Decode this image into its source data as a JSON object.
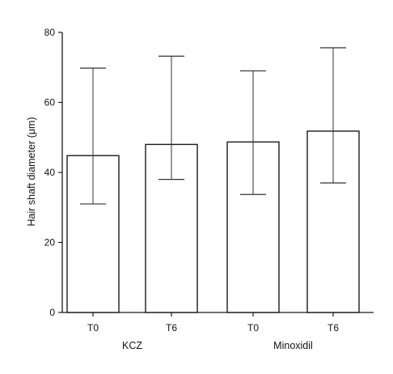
{
  "chart_data": {
    "type": "bar",
    "title": "",
    "ylabel": "Hair shaft diameter (μm)",
    "xlabel": "",
    "ylim": [
      0,
      80
    ],
    "yticks": [
      0,
      20,
      40,
      60,
      80
    ],
    "categories": [
      "T0",
      "T6",
      "T0",
      "T6"
    ],
    "groups": [
      {
        "label": "KCZ",
        "categories": [
          0,
          1
        ]
      },
      {
        "label": "Minoxidil",
        "categories": [
          2,
          3
        ]
      }
    ],
    "values": [
      44.8,
      48,
      48.7,
      51.8
    ],
    "error_low": [
      31,
      38,
      33.7,
      37
    ],
    "error_high": [
      69.8,
      73.2,
      69,
      75.6
    ],
    "grid": false,
    "legend": "none",
    "colors": {
      "bar_fill": "#ffffff",
      "bar_stroke": "#1a1a1a",
      "axis": "#1a1a1a",
      "error_bar": "#333333"
    }
  }
}
